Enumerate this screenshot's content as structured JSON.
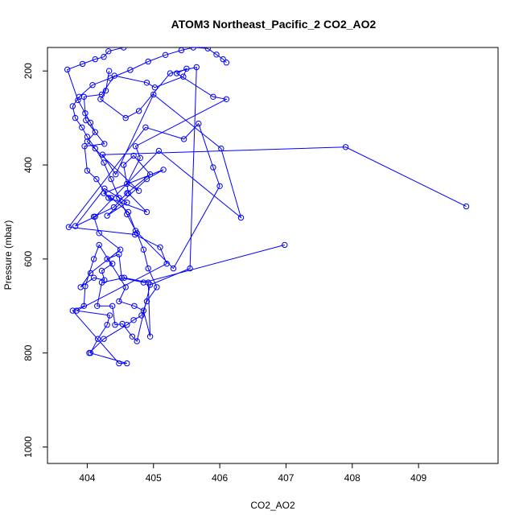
{
  "chart_data": {
    "type": "line",
    "title": "ATOM3 Northeast_Pacific_2 CO2_AO2",
    "xlabel": "CO2_AO2",
    "ylabel": "Pressure (mbar)",
    "xlim": [
      403.4,
      410.2
    ],
    "ylim": [
      1035,
      150
    ],
    "y_reversed": true,
    "x_ticks": [
      404,
      405,
      406,
      407,
      408,
      409
    ],
    "y_ticks": [
      200,
      400,
      600,
      800,
      1000
    ],
    "grid": false,
    "legend": "none",
    "series_color": "#0000ff",
    "marker": "open-circle",
    "series": [
      {
        "x": [
          409.72,
          407.9,
          404.23,
          404.43,
          405.0,
          406.02,
          406.32,
          405.08,
          404.12,
          403.82,
          404.26,
          404.6,
          404.3,
          404.9,
          405.15,
          404.25,
          404.36,
          404.62,
          404.73,
          405.3,
          406.0,
          405.9,
          405.68,
          405.46,
          404.88,
          403.72,
          404.72,
          405.1,
          405.2,
          403.84,
          404.34,
          404.3,
          404.16,
          404.05,
          404.6,
          404.48,
          403.78,
          403.95,
          403.97,
          404.1,
          404.18,
          404.58,
          404.48,
          404.71,
          404.85,
          404.95,
          404.92,
          404.56,
          404.22,
          404.15,
          404.38,
          404.42,
          404.53,
          404.68,
          404.75,
          404.95,
          405.55,
          405.65,
          405.25,
          404.78,
          404.58,
          404.2,
          404.28,
          404.33
        ],
        "y": [
          488,
          362,
          378,
          420,
          250,
          365,
          512,
          370,
          510,
          530,
          450,
          480,
          508,
          430,
          410,
          460,
          470,
          500,
          540,
          620,
          445,
          405,
          312,
          345,
          320,
          532,
          548,
          575,
          610,
          710,
          720,
          740,
          770,
          800,
          822,
          822,
          710,
          700,
          658,
          600,
          570,
          660,
          690,
          700,
          710,
          765,
          650,
          640,
          650,
          700,
          700,
          740,
          738,
          765,
          775,
          655,
          620,
          192,
          205,
          285,
          300,
          260,
          242,
          200
        ]
      },
      {
        "x": [
          406.98,
          404.85,
          404.52,
          404.48,
          404.3,
          404.38,
          404.22,
          404.26,
          404.1,
          403.9,
          404.05,
          404.5,
          404.18,
          404.1,
          404.4,
          404.6,
          404.95,
          404.7,
          404.55,
          404.62,
          404.9,
          404.32,
          404.14,
          404.0,
          403.96,
          404.26,
          403.98,
          403.95,
          404.22,
          404.41,
          404.9,
          405.02,
          405.45,
          405.5,
          405.35,
          405.9,
          406.1,
          404.73,
          404.8,
          404.6,
          404.78,
          404.0,
          404.12,
          404.05,
          403.97,
          403.86,
          403.7,
          403.93,
          404.12,
          404.25,
          404.32,
          404.55
        ],
        "y": [
          570,
          650,
          640,
          590,
          600,
          610,
          625,
          645,
          640,
          660,
          630,
          580,
          545,
          510,
          490,
          460,
          420,
          380,
          400,
          460,
          500,
          470,
          430,
          412,
          360,
          355,
          305,
          255,
          250,
          210,
          225,
          235,
          212,
          195,
          205,
          255,
          260,
          360,
          385,
          440,
          455,
          350,
          330,
          310,
          290,
          262,
          197,
          185,
          175,
          170,
          158,
          150
        ]
      },
      {
        "x": [
          404.03,
          404.25,
          404.6,
          404.7,
          404.82,
          404.9,
          405.05,
          404.92,
          404.85,
          404.75,
          404.6,
          404.48,
          404.36,
          404.25,
          404.12,
          404.0,
          403.92,
          403.82,
          403.78,
          403.88,
          404.08,
          404.35,
          404.65,
          404.92,
          405.18,
          405.42,
          405.6,
          405.82,
          405.95,
          406.05,
          406.1
        ],
        "y": [
          800,
          770,
          740,
          730,
          720,
          690,
          660,
          620,
          580,
          545,
          505,
          470,
          430,
          395,
          365,
          340,
          320,
          300,
          275,
          255,
          230,
          215,
          198,
          180,
          166,
          156,
          150,
          152,
          165,
          175,
          182
        ]
      }
    ]
  }
}
